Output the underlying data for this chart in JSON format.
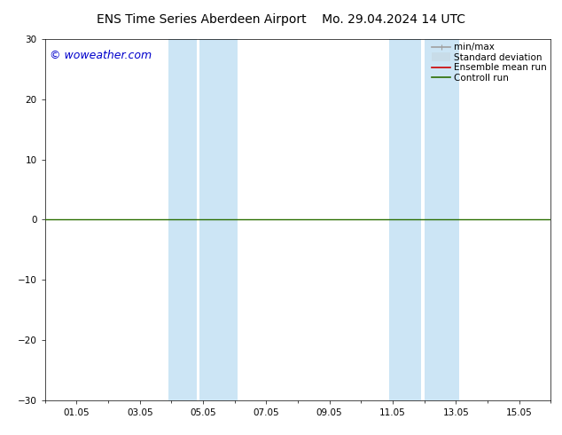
{
  "title_left": "ENS Time Series Aberdeen Airport",
  "title_right": "Mo. 29.04.2024 14 UTC",
  "watermark": "© woweather.com",
  "ylim": [
    -30,
    30
  ],
  "yticks": [
    -30,
    -20,
    -10,
    0,
    10,
    20,
    30
  ],
  "xtick_labels": [
    "01.05",
    "03.05",
    "05.05",
    "07.05",
    "09.05",
    "11.05",
    "13.05",
    "15.05"
  ],
  "xtick_positions": [
    1,
    3,
    5,
    7,
    9,
    11,
    13,
    15
  ],
  "xlim": [
    0,
    16
  ],
  "background_color": "#ffffff",
  "plot_bg_color": "#ffffff",
  "band_color": "#cce5f5",
  "bands": [
    [
      3.9,
      4.8
    ],
    [
      4.9,
      6.1
    ],
    [
      10.9,
      11.9
    ],
    [
      12.0,
      13.1
    ]
  ],
  "zero_line_color": "#2a6e00",
  "legend_items": [
    {
      "label": "min/max",
      "color": "#a0a0a0",
      "lw": 1.2
    },
    {
      "label": "Standard deviation",
      "color": "#c8dce8",
      "lw": 7
    },
    {
      "label": "Ensemble mean run",
      "color": "#cc0000",
      "lw": 1.2
    },
    {
      "label": "Controll run",
      "color": "#2a6e00",
      "lw": 1.2
    }
  ],
  "watermark_color": "#0000cc",
  "title_fontsize": 10,
  "tick_fontsize": 7.5,
  "legend_fontsize": 7.5,
  "watermark_fontsize": 9
}
